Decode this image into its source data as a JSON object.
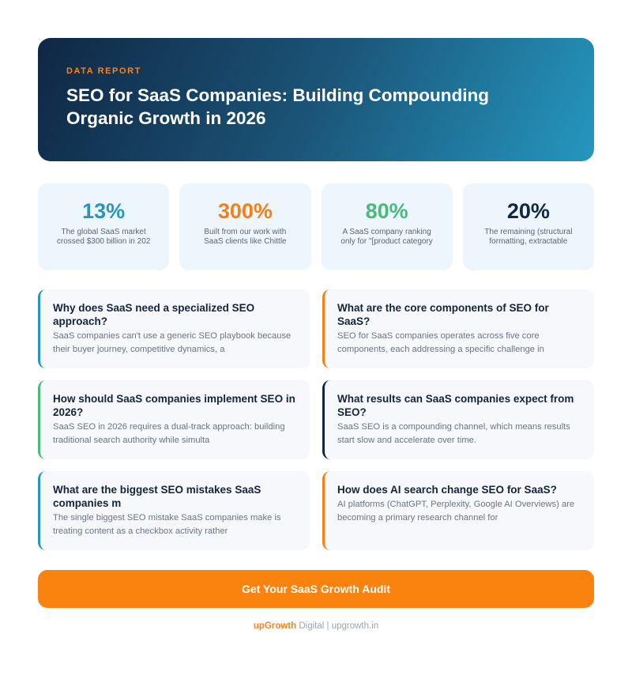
{
  "header": {
    "eyebrow": "DATA REPORT",
    "title": "SEO for SaaS Companies: Building Compounding Organic Growth in 2026"
  },
  "stats": [
    {
      "value": "13%",
      "desc": "The global SaaS market crossed $300 billion in 202",
      "color": "#2596be"
    },
    {
      "value": "300%",
      "desc": "Built from our work with SaaS clients like Chittle",
      "color": "#f97f12"
    },
    {
      "value": "80%",
      "desc": "A SaaS company ranking only for \"[product category",
      "color": "#48bb78"
    },
    {
      "value": "20%",
      "desc": "The remaining (structural formatting, extractable",
      "color": "#0f2744"
    }
  ],
  "cards": [
    {
      "title": "Why does SaaS need a specialized SEO approach?",
      "body": "SaaS companies can't use a generic SEO playbook because their buyer journey, competitive dynamics, a",
      "accent": "#2596be"
    },
    {
      "title": "What are the core components of SEO for SaaS?",
      "body": "SEO for SaaS companies operates across five core components, each addressing a specific challenge in",
      "accent": "#f97f12"
    },
    {
      "title": "How should SaaS companies implement SEO in 2026?",
      "body": "SaaS SEO in 2026 requires a dual-track approach: building traditional search authority while simulta",
      "accent": "#48bb78"
    },
    {
      "title": "What results can SaaS companies expect from SEO?",
      "body": "SaaS SEO is a compounding channel, which means results start slow and accelerate over time.",
      "accent": "#0f2744"
    },
    {
      "title": "What are the biggest SEO mistakes SaaS companies m",
      "body": "The single biggest SEO mistake SaaS companies make is treating content as a checkbox activity rather",
      "accent": "#2596be"
    },
    {
      "title": "How does AI search change SEO for SaaS?",
      "body": "AI platforms (ChatGPT, Perplexity, Google AI Overviews) are becoming a primary research channel for",
      "accent": "#f97f12"
    }
  ],
  "cta": {
    "label": "Get Your SaaS Growth Audit"
  },
  "footer": {
    "brand": "upGrowth",
    "brand_suffix": " Digital",
    "separator": " | ",
    "site": "upgrowth.in"
  }
}
